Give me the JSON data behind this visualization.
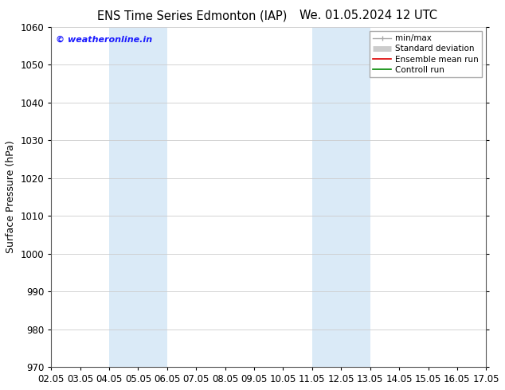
{
  "title_left": "ENS Time Series Edmonton (IAP)",
  "title_right": "We. 01.05.2024 12 UTC",
  "ylabel": "Surface Pressure (hPa)",
  "ylim": [
    970,
    1060
  ],
  "yticks": [
    970,
    980,
    990,
    1000,
    1010,
    1020,
    1030,
    1040,
    1050,
    1060
  ],
  "xlim_start": 0,
  "xlim_end": 15,
  "xtick_labels": [
    "02.05",
    "03.05",
    "04.05",
    "05.05",
    "06.05",
    "07.05",
    "08.05",
    "09.05",
    "10.05",
    "11.05",
    "12.05",
    "13.05",
    "14.05",
    "15.05",
    "16.05",
    "17.05"
  ],
  "xtick_positions": [
    0,
    1,
    2,
    3,
    4,
    5,
    6,
    7,
    8,
    9,
    10,
    11,
    12,
    13,
    14,
    15
  ],
  "shaded_bands": [
    {
      "xmin": 2,
      "xmax": 4,
      "color": "#daeaf7"
    },
    {
      "xmin": 9,
      "xmax": 11,
      "color": "#daeaf7"
    }
  ],
  "watermark": "© weatheronline.in",
  "watermark_color": "#1a1aff",
  "legend_items": [
    {
      "label": "min/max",
      "color": "#aaaaaa",
      "lw": 1.0,
      "ls": "-",
      "type": "line_with_caps"
    },
    {
      "label": "Standard deviation",
      "color": "#cccccc",
      "lw": 5,
      "ls": "-",
      "type": "thick"
    },
    {
      "label": "Ensemble mean run",
      "color": "#dd0000",
      "lw": 1.2,
      "ls": "-",
      "type": "line"
    },
    {
      "label": "Controll run",
      "color": "#008800",
      "lw": 1.2,
      "ls": "-",
      "type": "line"
    }
  ],
  "background_color": "#ffffff",
  "plot_bg_color": "#ffffff",
  "grid_color": "#cccccc",
  "title_fontsize": 10.5,
  "axis_label_fontsize": 9,
  "tick_fontsize": 8.5,
  "legend_fontsize": 7.5
}
